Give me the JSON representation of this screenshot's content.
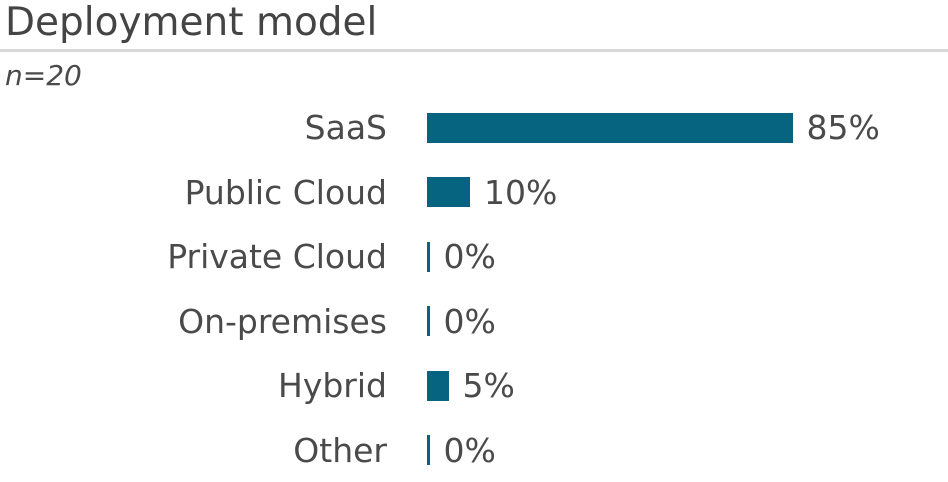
{
  "header": {
    "title": "Deployment model",
    "sample_label": "n=20"
  },
  "chart_data": {
    "type": "bar",
    "orientation": "horizontal",
    "title": "Deployment model",
    "subtitle": "n=20",
    "categories": [
      "SaaS",
      "Public Cloud",
      "Private Cloud",
      "On-premises",
      "Hybrid",
      "Other"
    ],
    "values": [
      85,
      10,
      0,
      0,
      5,
      0
    ],
    "value_labels": [
      "85%",
      "10%",
      "0%",
      "0%",
      "5%",
      "0%"
    ],
    "unit": "%",
    "xlim": [
      0,
      100
    ],
    "grid": false,
    "legend": false,
    "bar_color": "#076480"
  },
  "colors": {
    "bar": "#076480",
    "title_text": "#444444",
    "label_text": "#4a4a4a",
    "separator": "#d9d9d9",
    "background": "#ffffff"
  }
}
